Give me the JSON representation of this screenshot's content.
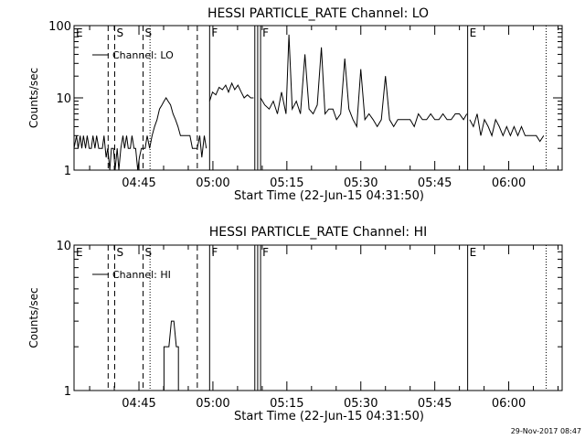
{
  "chart_data": [
    {
      "type": "line",
      "title": "HESSI PARTICLE_RATE Channel: LO",
      "xlabel": "Start Time (22-Jun-15 04:31:50)",
      "ylabel": "Counts/sec",
      "yscale": "log",
      "ylim": [
        1,
        100
      ],
      "y_tick_labels": [
        "1",
        "10",
        "100"
      ],
      "xlim": [
        "04:31:50",
        "06:10:50"
      ],
      "x_tick_labels": [
        "04:45",
        "05:00",
        "05:15",
        "05:30",
        "05:45",
        "06:00"
      ],
      "legend": {
        "position": "top-left",
        "entries": [
          "Channel: LO"
        ]
      },
      "markers": [
        {
          "label": "E",
          "time": "04:31:50",
          "style": "none"
        },
        {
          "label": "",
          "time": "04:38:45",
          "style": "dashed"
        },
        {
          "label": "S",
          "time": "04:40:05",
          "style": "dashed"
        },
        {
          "label": "S",
          "time": "04:45:50",
          "style": "dashed"
        },
        {
          "label": "",
          "time": "04:47:15",
          "style": "dotted"
        },
        {
          "label": "",
          "time": "04:56:50",
          "style": "dashed"
        },
        {
          "label": "F",
          "time": "04:59:20",
          "style": "solid"
        },
        {
          "label": "",
          "time": "05:08:30",
          "style": "solid"
        },
        {
          "label": "",
          "time": "05:09:05",
          "style": "solid"
        },
        {
          "label": "F",
          "time": "05:09:40",
          "style": "solid"
        },
        {
          "label": "E",
          "time": "05:51:40",
          "style": "solid"
        },
        {
          "label": "",
          "time": "06:07:35",
          "style": "dotted"
        }
      ],
      "series": [
        {
          "name": "Channel: LO",
          "segments": [
            {
              "x": [
                "04:31:50",
                "04:32:20",
                "04:32:40",
                "04:33:05",
                "04:33:25",
                "04:33:45",
                "04:34:10",
                "04:34:30",
                "04:34:55",
                "04:35:20",
                "04:35:40",
                "04:36:05",
                "04:36:25",
                "04:36:50",
                "04:37:10",
                "04:37:35",
                "04:37:55",
                "04:38:20",
                "04:38:40",
                "04:39:05",
                "04:39:25",
                "04:39:50",
                "04:40:10",
                "04:40:35",
                "04:40:55",
                "04:41:20",
                "04:41:45",
                "04:42:05",
                "04:42:30",
                "04:42:50",
                "04:43:15",
                "04:43:35",
                "04:44:00",
                "04:44:20",
                "04:44:45",
                "04:45:05",
                "04:45:30",
                "04:45:50",
                "04:46:15",
                "04:46:40",
                "04:47:10",
                "04:47:40",
                "04:48:10",
                "04:48:40",
                "04:49:10",
                "04:49:40",
                "04:50:05",
                "04:50:30",
                "04:50:55",
                "04:51:25",
                "04:51:55",
                "04:52:25",
                "04:52:55",
                "04:53:25",
                "04:53:55",
                "04:54:20",
                "04:54:50",
                "04:55:20",
                "04:55:50",
                "04:56:20",
                "04:56:50",
                "04:57:20",
                "04:57:45",
                "04:58:15",
                "04:58:40"
              ],
              "y": [
                2,
                3,
                2,
                3,
                2,
                3,
                2,
                3,
                2,
                2,
                3,
                2,
                3,
                2,
                2,
                2,
                3,
                1.5,
                2,
                1,
                2,
                2,
                1,
                2,
                1,
                2,
                3,
                2,
                3,
                2,
                2,
                3,
                2,
                2,
                1,
                1.5,
                2,
                2,
                2,
                3,
                2,
                3,
                4,
                5,
                7,
                8,
                9,
                10,
                9,
                8,
                6,
                5,
                4,
                3,
                3,
                3,
                3,
                3,
                2,
                2,
                2,
                3,
                1.5,
                3,
                2
              ]
            },
            {
              "x": [
                "04:59:20",
                "04:59:55",
                "05:00:35",
                "05:01:15",
                "05:01:55",
                "05:02:35",
                "05:03:10",
                "05:03:50",
                "05:04:25",
                "05:05:05",
                "05:05:45",
                "05:06:20",
                "05:07:00",
                "05:07:40",
                "05:08:15"
              ],
              "y": [
                9,
                12,
                11,
                14,
                13,
                15,
                12,
                16,
                13,
                15,
                12,
                10,
                11,
                10,
                10
              ]
            },
            {
              "x": [
                "05:09:40",
                "05:10:30",
                "05:11:25",
                "05:12:15",
                "05:13:05",
                "05:13:55",
                "05:14:50",
                "05:15:25",
                "05:16:05",
                "05:16:55",
                "05:17:45",
                "05:18:40",
                "05:19:30",
                "05:20:20",
                "05:21:10",
                "05:22:00",
                "05:22:45",
                "05:23:30",
                "05:24:20",
                "05:25:05",
                "05:25:55",
                "05:26:45",
                "05:27:35",
                "05:28:25",
                "05:29:10",
                "05:30:00",
                "05:30:50",
                "05:31:40",
                "05:32:30",
                "05:33:20",
                "05:34:10",
                "05:35:00",
                "05:35:50",
                "05:36:40",
                "05:37:30",
                "05:38:20",
                "05:39:10",
                "05:40:00",
                "05:40:50",
                "05:41:40",
                "05:42:30",
                "05:43:20",
                "05:44:10",
                "05:45:00",
                "05:45:50",
                "05:46:40",
                "05:47:30",
                "05:48:20",
                "05:49:10",
                "05:50:00",
                "05:50:50",
                "05:51:30"
              ],
              "y": [
                10,
                8,
                7,
                9,
                6,
                12,
                6,
                75,
                7,
                9,
                6,
                40,
                7,
                6,
                8,
                50,
                6,
                7,
                7,
                5,
                6,
                35,
                7,
                5,
                4,
                25,
                5,
                6,
                5,
                4,
                5,
                20,
                5,
                4,
                5,
                5,
                5,
                5,
                4,
                6,
                5,
                5,
                6,
                5,
                5,
                6,
                5,
                5,
                6,
                6,
                5,
                6
              ]
            },
            {
              "x": [
                "05:52:05",
                "05:52:50",
                "05:53:35",
                "05:54:20",
                "05:55:05",
                "05:55:50",
                "05:56:35",
                "05:57:20",
                "05:58:05",
                "05:58:50",
                "05:59:35",
                "06:00:20",
                "06:01:05",
                "06:01:50",
                "06:02:35",
                "06:03:20",
                "06:04:05",
                "06:04:50",
                "06:05:35",
                "06:06:20",
                "06:07:05"
              ],
              "y": [
                5,
                4,
                6,
                3,
                5,
                4,
                3,
                5,
                4,
                3,
                4,
                3,
                4,
                3,
                4,
                3,
                3,
                3,
                3,
                2.5,
                3
              ]
            }
          ]
        }
      ]
    },
    {
      "type": "line",
      "title": "HESSI PARTICLE_RATE Channel: HI",
      "xlabel": "Start Time (22-Jun-15 04:31:50)",
      "ylabel": "Counts/sec",
      "yscale": "log",
      "ylim": [
        1,
        10
      ],
      "y_tick_labels": [
        "1",
        "10"
      ],
      "xlim": [
        "04:31:50",
        "06:10:50"
      ],
      "x_tick_labels": [
        "04:45",
        "05:00",
        "05:15",
        "05:30",
        "05:45",
        "06:00"
      ],
      "legend": {
        "position": "top-left",
        "entries": [
          "Channel: HI"
        ]
      },
      "markers": [
        {
          "label": "E",
          "time": "04:31:50",
          "style": "none"
        },
        {
          "label": "",
          "time": "04:38:45",
          "style": "dashed"
        },
        {
          "label": "S",
          "time": "04:40:05",
          "style": "dashed"
        },
        {
          "label": "S",
          "time": "04:45:50",
          "style": "dashed"
        },
        {
          "label": "",
          "time": "04:47:15",
          "style": "dotted"
        },
        {
          "label": "",
          "time": "04:56:50",
          "style": "dashed"
        },
        {
          "label": "F",
          "time": "04:59:20",
          "style": "solid"
        },
        {
          "label": "",
          "time": "05:08:30",
          "style": "solid"
        },
        {
          "label": "",
          "time": "05:09:05",
          "style": "solid"
        },
        {
          "label": "F",
          "time": "05:09:40",
          "style": "solid"
        },
        {
          "label": "E",
          "time": "05:51:40",
          "style": "solid"
        },
        {
          "label": "",
          "time": "06:07:35",
          "style": "dotted"
        }
      ],
      "series": [
        {
          "name": "Channel: HI",
          "segments": [
            {
              "x": [
                "04:50:05",
                "04:50:05",
                "04:51:05",
                "04:51:35",
                "04:52:05",
                "04:52:35",
                "04:53:00",
                "04:53:00"
              ],
              "y": [
                1,
                2,
                2,
                3,
                3,
                2,
                2,
                1
              ]
            }
          ]
        }
      ]
    }
  ],
  "footer": {
    "timestamp": "29-Nov-2017 08:47"
  }
}
